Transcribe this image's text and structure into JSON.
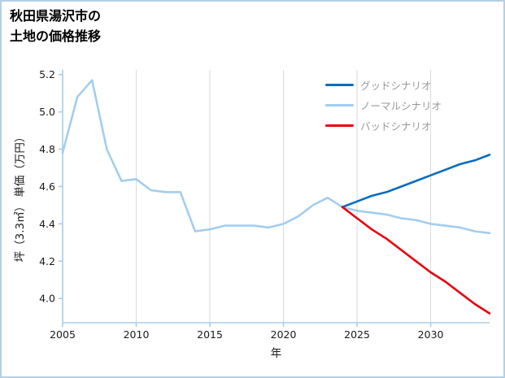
{
  "title": {
    "line1": "秋田県湯沢市の",
    "line2": "土地の価格推移"
  },
  "theme": {
    "background": "#ffffff",
    "border_color": "#b4cfe4",
    "axis_color": "#a9cde8",
    "grid_color": "#d9d9d9",
    "tick_text_color": "#1a1a1a",
    "title_color": "#000000",
    "legend_text_color": "#999999"
  },
  "chart_data": {
    "type": "line",
    "title": "秋田県湯沢市の土地の価格推移",
    "xlabel": "年",
    "ylabel": "坪（3.3㎡） 単価（万円）",
    "xlim": [
      2005,
      2034
    ],
    "ylim": [
      3.87,
      5.225
    ],
    "xticks": [
      2005,
      2010,
      2015,
      2020,
      2025,
      2030
    ],
    "yticks": [
      4.0,
      4.2,
      4.4,
      4.6,
      4.8,
      5.0,
      5.2
    ],
    "grid": "vertical-only",
    "legend_position": "upper-right",
    "series": [
      {
        "name": "グッドシナリオ",
        "color": "#0a6cbe",
        "zorder": 2,
        "x": [
          2024,
          2025,
          2026,
          2027,
          2028,
          2029,
          2030,
          2031,
          2032,
          2033,
          2034
        ],
        "y": [
          4.49,
          4.52,
          4.55,
          4.57,
          4.6,
          4.63,
          4.66,
          4.69,
          4.72,
          4.74,
          4.77
        ]
      },
      {
        "name": "ノーマルシナリオ",
        "color": "#a3cdf0",
        "zorder": 1,
        "x": [
          2005,
          2006,
          2007,
          2008,
          2009,
          2010,
          2011,
          2012,
          2013,
          2014,
          2015,
          2016,
          2017,
          2018,
          2019,
          2020,
          2021,
          2022,
          2023,
          2024,
          2025,
          2026,
          2027,
          2028,
          2029,
          2030,
          2031,
          2032,
          2033,
          2034
        ],
        "y": [
          4.78,
          5.08,
          5.17,
          4.8,
          4.63,
          4.64,
          4.58,
          4.57,
          4.57,
          4.36,
          4.37,
          4.39,
          4.39,
          4.39,
          4.38,
          4.4,
          4.44,
          4.5,
          4.54,
          4.49,
          4.47,
          4.46,
          4.45,
          4.43,
          4.42,
          4.4,
          4.39,
          4.38,
          4.36,
          4.35
        ]
      },
      {
        "name": "バッドシナリオ",
        "color": "#e8000b",
        "zorder": 3,
        "x": [
          2024,
          2025,
          2026,
          2027,
          2028,
          2029,
          2030,
          2031,
          2032,
          2033,
          2034
        ],
        "y": [
          4.49,
          4.43,
          4.37,
          4.32,
          4.26,
          4.2,
          4.14,
          4.09,
          4.03,
          3.97,
          3.92
        ]
      }
    ]
  }
}
